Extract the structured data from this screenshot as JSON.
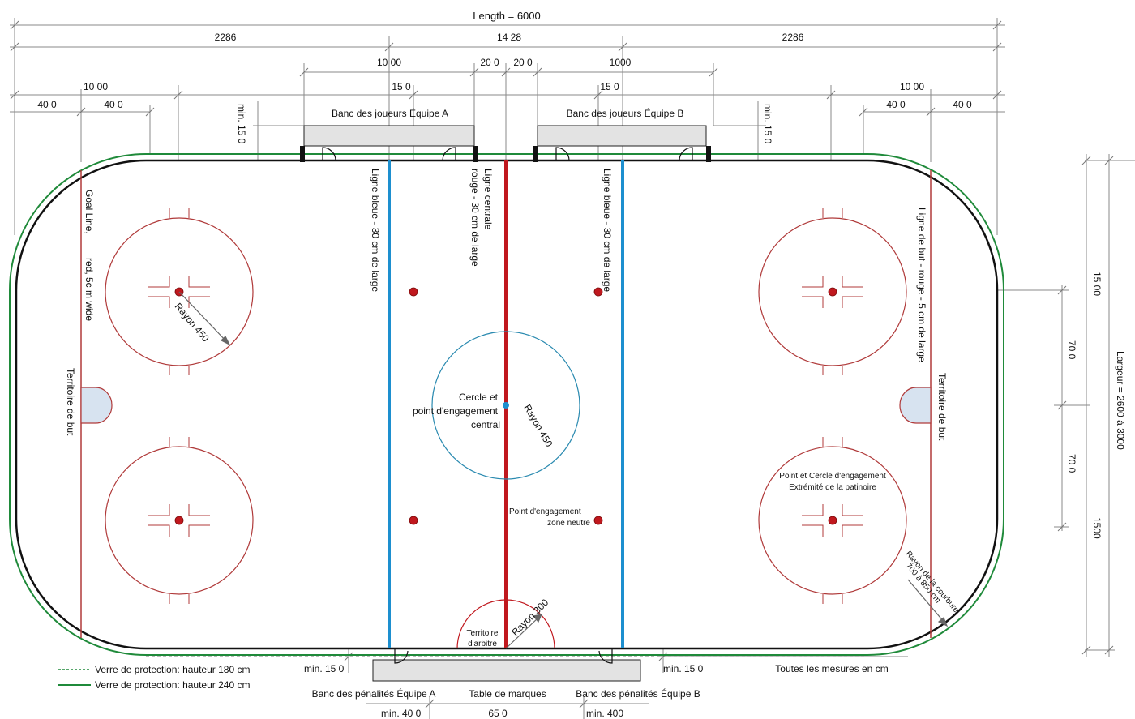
{
  "dimensions": {
    "length": "Length   = 6000",
    "seg_end": "2286",
    "seg_center": "14 28",
    "bench_len": "10 00",
    "bench_len_b": "1000",
    "gap": "20 0",
    "end_zone": "10 00",
    "offset_400": "40 0",
    "offset_150": "15 0",
    "min_150_rot": "min.  15 0",
    "width_label": "Largeur = 2600 à 3000",
    "w1500": "15 00",
    "w1500b": "1500",
    "w700": "70 0",
    "min_150": "min. 15 0",
    "min_400": "min. 40 0",
    "min_400b": "min. 400",
    "table_len": "65 0"
  },
  "labels": {
    "bench_a": "Banc des joueurs Équipe A",
    "bench_b": "Banc des joueurs Équipe B",
    "goal_line_left_1": "Goal Line,",
    "goal_line_left_2": "red,  5c m wide",
    "goal_terr_left": "Territoire de but",
    "goal_terr_right": "Territoire de but",
    "blue_line": "Ligne bleue - 30 cm de large",
    "center_line_1": "Ligne centrale",
    "center_line_2": "rouge - 30 cm de large",
    "goal_line_right": "Ligne de but - rouge - 5 cm de large",
    "radius_450": "Rayon 450",
    "center_circle_1": "Cercle et",
    "center_circle_2": "point d'engagement",
    "center_circle_3": "central",
    "neutral_dot_1": "Point d'engagement",
    "neutral_dot_2": "zone neutre",
    "end_dot_1": "Point et Cercle d'engagement",
    "end_dot_2": "Extrémité de la patinoire",
    "corner_radius_1": "Rayon de la courbure",
    "corner_radius_2": "700 à 850 cm",
    "ref_crease_1": "Territoire",
    "ref_crease_2": "d'arbitre",
    "radius_300": "Rayon 300",
    "penalty_a": "Banc des pénalités Équipe A",
    "penalty_b": "Banc des pénalités Équipe B",
    "scorer": "Table de marques",
    "all_cm": "Toutes les mesures en cm"
  },
  "legend": {
    "glass_180": "Verre de protection:  hauteur 180 cm",
    "glass_240": "Verre de protection:  hauteur 240 cm"
  },
  "colors": {
    "board": "#111111",
    "glass": "#1f8a3a",
    "red_line": "#c0181e",
    "thin_red": "#b03a3a",
    "blue_line": "#1d8fcf",
    "center_circle": "#2a8ab0",
    "crease_fill": "#d7e3f0",
    "bench_fill": "#e3e3e3"
  }
}
